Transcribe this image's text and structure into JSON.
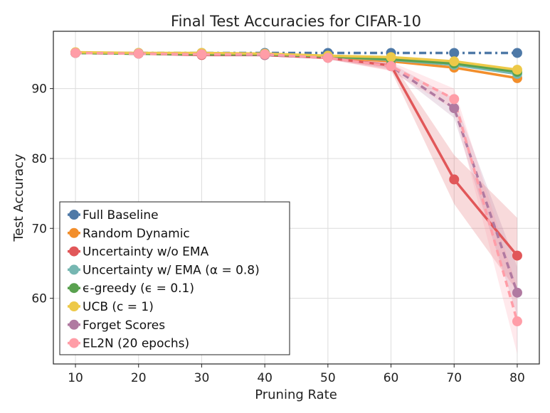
{
  "chart_data": {
    "type": "line",
    "title": "Final Test Accuracies for CIFAR-10",
    "xlabel": "Pruning Rate",
    "ylabel": "Test Accuracy",
    "x": [
      10,
      20,
      30,
      40,
      50,
      60,
      70,
      80
    ],
    "xlim": [
      6.5,
      83.5
    ],
    "ylim": [
      50.6,
      98.2
    ],
    "xticks": [
      10,
      20,
      30,
      40,
      50,
      60,
      70,
      80
    ],
    "yticks": [
      60,
      70,
      80,
      90
    ],
    "grid": true,
    "legend_position": "bottom-left",
    "series": [
      {
        "name": "Full Baseline",
        "color": "#4e79a7",
        "dash": "dashdot",
        "values": [
          95.1,
          95.1,
          95.1,
          95.1,
          95.1,
          95.1,
          95.1,
          95.1
        ]
      },
      {
        "name": "Random Dynamic",
        "color": "#f28e2b",
        "dash": "solid",
        "values": [
          95.1,
          95.0,
          94.9,
          94.8,
          94.5,
          93.9,
          93.0,
          91.5
        ]
      },
      {
        "name": "Uncertainty w/o EMA",
        "color": "#e15759",
        "dash": "solid",
        "values": [
          95.1,
          95.0,
          94.8,
          94.8,
          94.4,
          93.3,
          77.0,
          66.1
        ],
        "band_lower": [
          95.0,
          94.9,
          94.7,
          94.7,
          94.2,
          92.6,
          73.5,
          61.0
        ],
        "band_upper": [
          95.2,
          95.1,
          94.9,
          94.9,
          94.6,
          94.0,
          80.5,
          71.5
        ]
      },
      {
        "name": "Uncertainty w/ EMA (α = 0.8)",
        "color": "#76b7b2",
        "dash": "solid",
        "values": [
          95.1,
          95.0,
          94.9,
          94.9,
          94.6,
          94.1,
          93.4,
          92.1
        ]
      },
      {
        "name": "ϵ-greedy (ϵ = 0.1)",
        "color": "#59a14f",
        "dash": "solid",
        "values": [
          95.1,
          95.0,
          94.9,
          94.9,
          94.6,
          94.2,
          93.6,
          92.4
        ]
      },
      {
        "name": "UCB (c = 1)",
        "color": "#edc948",
        "dash": "solid",
        "values": [
          95.2,
          95.1,
          95.1,
          95.0,
          94.7,
          94.5,
          93.9,
          92.7
        ]
      },
      {
        "name": "Forget Scores",
        "color": "#b07aa1",
        "dash": "dashed",
        "values": [
          95.1,
          95.0,
          94.9,
          94.8,
          94.4,
          93.2,
          87.2,
          60.8
        ],
        "band_lower": [
          95.0,
          94.9,
          94.8,
          94.7,
          94.2,
          92.8,
          85.8,
          57.5
        ],
        "band_upper": [
          95.2,
          95.1,
          95.0,
          94.9,
          94.6,
          93.6,
          88.6,
          64.5
        ]
      },
      {
        "name": "EL2N (20 epochs)",
        "color": "#ff9da7",
        "dash": "dashed",
        "values": [
          95.1,
          95.0,
          94.9,
          94.9,
          94.4,
          93.2,
          88.5,
          56.7
        ],
        "band_lower": [
          95.0,
          94.9,
          94.8,
          94.8,
          94.2,
          92.5,
          87.0,
          52.0
        ],
        "band_upper": [
          95.2,
          95.1,
          95.0,
          95.0,
          94.6,
          93.8,
          90.0,
          61.5
        ]
      }
    ]
  }
}
